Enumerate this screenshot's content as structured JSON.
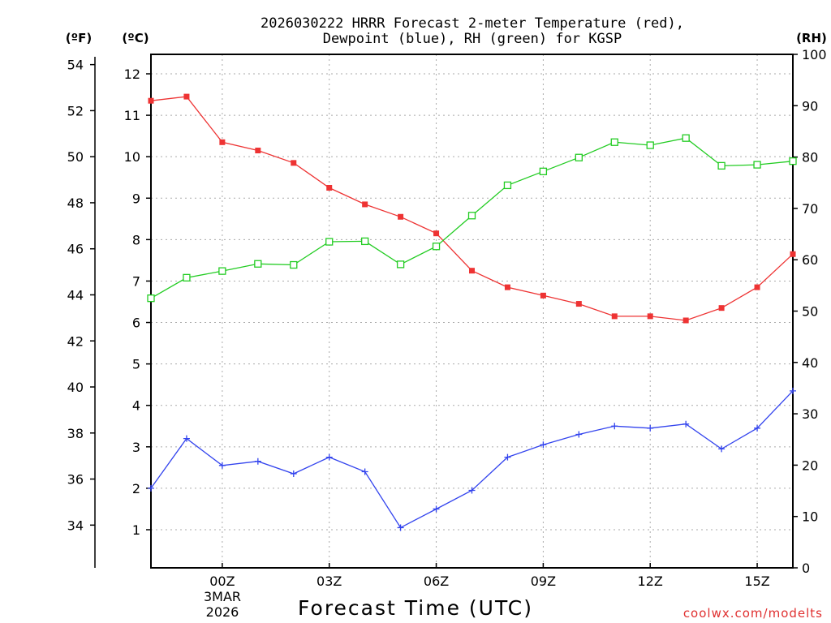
{
  "chart_data": {
    "type": "line",
    "title_lines": [
      "2026030222 HRRR Forecast 2-meter Temperature (red),",
      "Dewpoint (blue), RH (green) for KGSP"
    ],
    "xlabel": "Forecast Time (UTC)",
    "x_hours": [
      -2,
      -1,
      0,
      1,
      2,
      3,
      4,
      5,
      6,
      7,
      8,
      9,
      10,
      11,
      12,
      13,
      14,
      15,
      16
    ],
    "x_ticks": [
      {
        "hour": 0,
        "label": "00Z"
      },
      {
        "hour": 3,
        "label": "03Z"
      },
      {
        "hour": 6,
        "label": "06Z"
      },
      {
        "hour": 9,
        "label": "09Z"
      },
      {
        "hour": 12,
        "label": "12Z"
      },
      {
        "hour": 15,
        "label": "15Z"
      }
    ],
    "date_labels": [
      "3MAR",
      "2026"
    ],
    "xlim": [
      -2,
      16
    ],
    "axes": {
      "fahrenheit": {
        "unit_label": "(ºF)",
        "ticks": [
          34,
          36,
          38,
          40,
          42,
          44,
          46,
          48,
          50,
          52,
          54
        ]
      },
      "celsius": {
        "unit_label": "(ºC)",
        "ticks": [
          1,
          2,
          3,
          4,
          5,
          6,
          7,
          8,
          9,
          10,
          11,
          12
        ],
        "range": [
          0.1,
          12.5
        ]
      },
      "rh": {
        "unit_label": "(RH)",
        "ticks": [
          0,
          10,
          20,
          30,
          40,
          50,
          60,
          70,
          80,
          90,
          100
        ],
        "range": [
          0,
          100
        ]
      }
    },
    "series": [
      {
        "name": "Temperature",
        "units": "C",
        "color": "#ee3333",
        "marker": "filled-square",
        "values": [
          11.35,
          11.45,
          10.35,
          10.15,
          9.85,
          9.25,
          8.85,
          8.55,
          8.15,
          7.25,
          6.85,
          6.65,
          6.45,
          6.15,
          6.15,
          6.05,
          6.35,
          6.85,
          7.65
        ]
      },
      {
        "name": "Dewpoint",
        "units": "C",
        "color": "#3344ee",
        "marker": "plus",
        "values": [
          2.0,
          3.2,
          2.55,
          2.65,
          2.35,
          2.75,
          2.4,
          1.05,
          1.5,
          1.95,
          2.75,
          3.05,
          3.3,
          3.5,
          3.45,
          3.55,
          2.95,
          3.45,
          4.35
        ]
      },
      {
        "name": "RH",
        "units": "%",
        "color": "#22cc22",
        "marker": "open-square",
        "values": [
          52.5,
          56.5,
          57.8,
          59.2,
          59.0,
          63.5,
          63.6,
          59.1,
          62.6,
          68.6,
          74.5,
          77.2,
          79.9,
          82.9,
          82.3,
          83.7,
          78.3,
          78.5,
          79.2
        ]
      }
    ]
  },
  "credit": {
    "text": "coolwx.com/modelts",
    "color": "#e03030"
  }
}
